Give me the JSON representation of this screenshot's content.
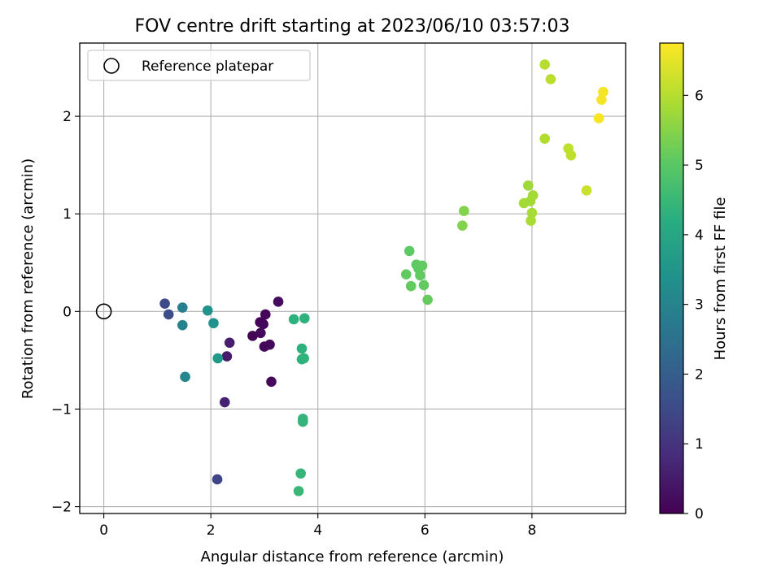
{
  "chart_data": {
    "type": "scatter",
    "title": "FOV centre drift starting at 2023/06/10 03:57:03",
    "xlabel": "Angular distance from reference (arcmin)",
    "ylabel": "Rotation from reference (arcmin)",
    "xlim": [
      -0.45,
      9.75
    ],
    "ylim": [
      -2.07,
      2.75
    ],
    "xticks": [
      0,
      2,
      4,
      6,
      8
    ],
    "yticks": [
      -2,
      -1,
      0,
      1,
      2
    ],
    "xtick_labels": [
      "0",
      "2",
      "4",
      "6",
      "8"
    ],
    "ytick_labels": [
      "−2",
      "−1",
      "0",
      "1",
      "2"
    ],
    "grid": true,
    "legend": {
      "position": "top-left",
      "entries": [
        "Reference platepar"
      ]
    },
    "colorbar": {
      "label": "Hours from first FF file",
      "colormap": "viridis",
      "range": [
        0,
        6.75
      ],
      "ticks": [
        0,
        1,
        2,
        3,
        4,
        5,
        6
      ],
      "tick_labels": [
        "0",
        "1",
        "2",
        "3",
        "4",
        "5",
        "6"
      ]
    },
    "reference_point": {
      "x": 0,
      "y": 0
    },
    "points": [
      {
        "x": 2.78,
        "y": -0.25,
        "c": 0.05
      },
      {
        "x": 2.92,
        "y": -0.11,
        "c": 0.08
      },
      {
        "x": 2.98,
        "y": -0.13,
        "c": 0.1
      },
      {
        "x": 3.0,
        "y": -0.36,
        "c": 0.1
      },
      {
        "x": 3.02,
        "y": -0.03,
        "c": 0.12
      },
      {
        "x": 2.93,
        "y": -0.22,
        "c": 0.15
      },
      {
        "x": 3.1,
        "y": -0.34,
        "c": 0.15
      },
      {
        "x": 3.13,
        "y": -0.72,
        "c": 0.15
      },
      {
        "x": 3.26,
        "y": 0.1,
        "c": 0.2
      },
      {
        "x": 2.3,
        "y": -0.46,
        "c": 0.5
      },
      {
        "x": 2.35,
        "y": -0.32,
        "c": 0.55
      },
      {
        "x": 2.26,
        "y": -0.93,
        "c": 0.65
      },
      {
        "x": 2.12,
        "y": -1.72,
        "c": 1.4
      },
      {
        "x": 1.14,
        "y": 0.08,
        "c": 1.5
      },
      {
        "x": 1.21,
        "y": -0.03,
        "c": 1.6
      },
      {
        "x": 1.47,
        "y": 0.04,
        "c": 2.9
      },
      {
        "x": 1.47,
        "y": -0.14,
        "c": 3.0
      },
      {
        "x": 1.52,
        "y": -0.67,
        "c": 3.1
      },
      {
        "x": 1.94,
        "y": 0.01,
        "c": 3.4
      },
      {
        "x": 2.05,
        "y": -0.12,
        "c": 3.4
      },
      {
        "x": 2.13,
        "y": -0.48,
        "c": 3.6
      },
      {
        "x": 3.55,
        "y": -0.08,
        "c": 4.3
      },
      {
        "x": 3.75,
        "y": -0.07,
        "c": 4.3
      },
      {
        "x": 3.7,
        "y": -0.38,
        "c": 4.3
      },
      {
        "x": 3.7,
        "y": -0.49,
        "c": 4.3
      },
      {
        "x": 3.74,
        "y": -0.48,
        "c": 4.35
      },
      {
        "x": 3.72,
        "y": -1.1,
        "c": 4.4
      },
      {
        "x": 3.72,
        "y": -1.13,
        "c": 4.4
      },
      {
        "x": 3.68,
        "y": -1.66,
        "c": 4.45
      },
      {
        "x": 3.64,
        "y": -1.84,
        "c": 4.5
      },
      {
        "x": 5.71,
        "y": 0.62,
        "c": 5.05
      },
      {
        "x": 5.84,
        "y": 0.48,
        "c": 5.05
      },
      {
        "x": 5.88,
        "y": 0.44,
        "c": 5.05
      },
      {
        "x": 5.95,
        "y": 0.47,
        "c": 5.1
      },
      {
        "x": 5.65,
        "y": 0.38,
        "c": 5.1
      },
      {
        "x": 5.91,
        "y": 0.37,
        "c": 5.1
      },
      {
        "x": 5.74,
        "y": 0.26,
        "c": 5.1
      },
      {
        "x": 5.98,
        "y": 0.27,
        "c": 5.1
      },
      {
        "x": 6.05,
        "y": 0.12,
        "c": 5.15
      },
      {
        "x": 6.73,
        "y": 1.03,
        "c": 5.45
      },
      {
        "x": 6.7,
        "y": 0.88,
        "c": 5.45
      },
      {
        "x": 7.93,
        "y": 1.29,
        "c": 5.75
      },
      {
        "x": 8.02,
        "y": 1.19,
        "c": 5.8
      },
      {
        "x": 7.97,
        "y": 1.13,
        "c": 5.8
      },
      {
        "x": 7.85,
        "y": 1.11,
        "c": 5.8
      },
      {
        "x": 8.0,
        "y": 1.01,
        "c": 5.85
      },
      {
        "x": 7.98,
        "y": 0.93,
        "c": 5.85
      },
      {
        "x": 8.24,
        "y": 1.77,
        "c": 5.95
      },
      {
        "x": 8.24,
        "y": 2.53,
        "c": 6.0
      },
      {
        "x": 8.35,
        "y": 2.38,
        "c": 6.05
      },
      {
        "x": 8.68,
        "y": 1.67,
        "c": 6.1
      },
      {
        "x": 8.73,
        "y": 1.6,
        "c": 6.1
      },
      {
        "x": 9.02,
        "y": 1.24,
        "c": 6.2
      },
      {
        "x": 9.33,
        "y": 2.25,
        "c": 6.65
      },
      {
        "x": 9.3,
        "y": 2.17,
        "c": 6.65
      },
      {
        "x": 9.25,
        "y": 1.98,
        "c": 6.7
      }
    ]
  }
}
